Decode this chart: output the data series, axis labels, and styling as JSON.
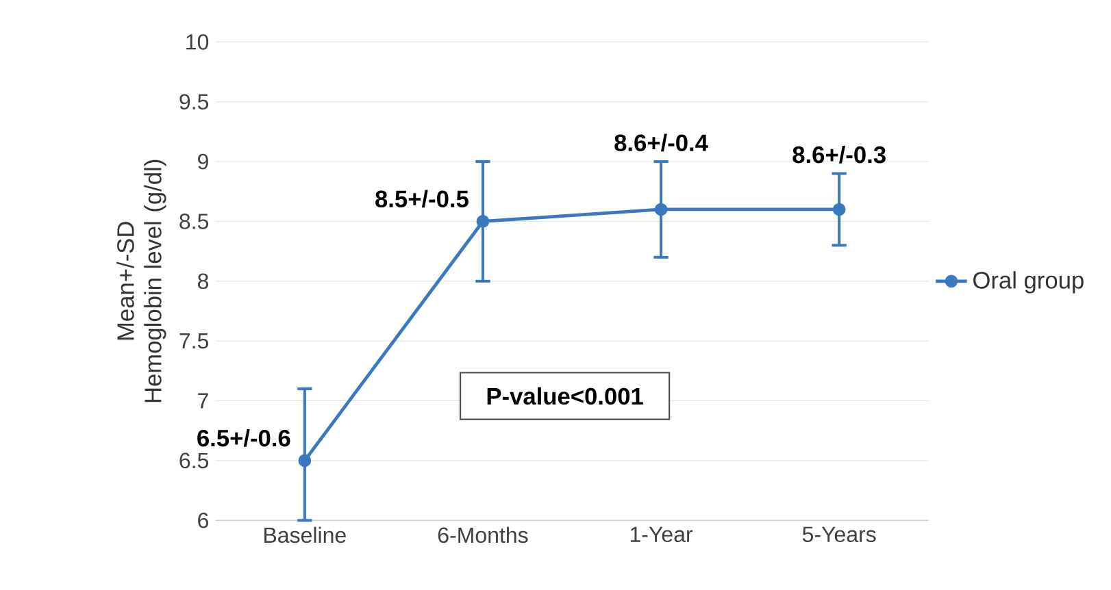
{
  "chart_data": {
    "type": "line",
    "ylabel": "Mean+/-SD Hemoglobin level (g/dl)",
    "categories": [
      "Baseline",
      "6-Months",
      "1-Year",
      "5-Years"
    ],
    "series": [
      {
        "name": "Oral group",
        "color": "#3a78c0",
        "values": [
          6.5,
          8.5,
          8.6,
          8.6
        ],
        "errors": [
          [
            6.0,
            7.1
          ],
          [
            8.0,
            9.0
          ],
          [
            8.2,
            9.0
          ],
          [
            8.3,
            8.9
          ]
        ],
        "value_labels": [
          "6.5+/-0.6",
          "8.5+/-0.5",
          "8.6+/-0.4",
          "8.6+/-0.3"
        ]
      }
    ],
    "ylim": [
      6,
      10
    ],
    "yticks": [
      6,
      6.5,
      7,
      7.5,
      8,
      8.5,
      9,
      9.5,
      10
    ],
    "grid": "y",
    "legend": "right",
    "marker": "circle",
    "line_style": "solid",
    "annotations": [
      "P-value<0.001"
    ]
  }
}
